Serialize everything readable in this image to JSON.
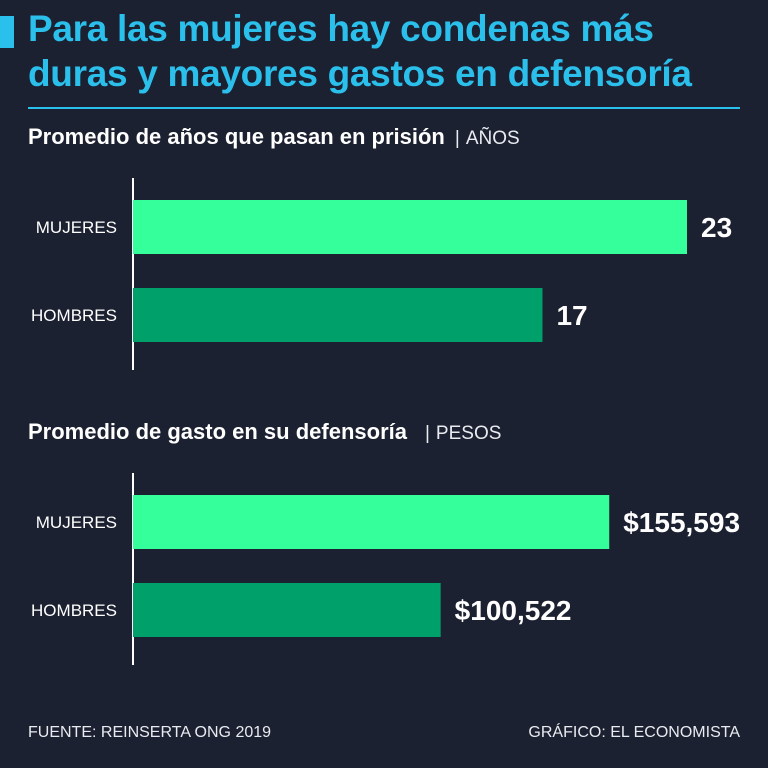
{
  "title": "Para las mujeres hay condenas más duras y mayores gastos en defensoría",
  "colors": {
    "background": "#1c2131",
    "accent": "#2bc0ec",
    "bar_light": "#35ff9a",
    "bar_dark": "#00a06a"
  },
  "chart_data": [
    {
      "type": "bar",
      "orientation": "horizontal",
      "title": "Promedio de años que pasan en prisión",
      "unit": "AÑOS",
      "categories": [
        "MUJERES",
        "HOMBRES"
      ],
      "values": [
        23,
        17
      ],
      "value_labels": [
        "23",
        "17"
      ],
      "xlim": [
        0,
        23
      ]
    },
    {
      "type": "bar",
      "orientation": "horizontal",
      "title": "Promedio de gasto en su defensoría",
      "unit": "PESOS",
      "categories": [
        "MUJERES",
        "HOMBRES"
      ],
      "values": [
        155593,
        100522
      ],
      "value_labels": [
        "$155,593",
        "$100,522"
      ],
      "xlim": [
        0,
        181000
      ]
    }
  ],
  "footer": {
    "source": "FUENTE: REINSERTA ONG 2019",
    "credit": "GRÁFICO: EL ECONOMISTA"
  }
}
